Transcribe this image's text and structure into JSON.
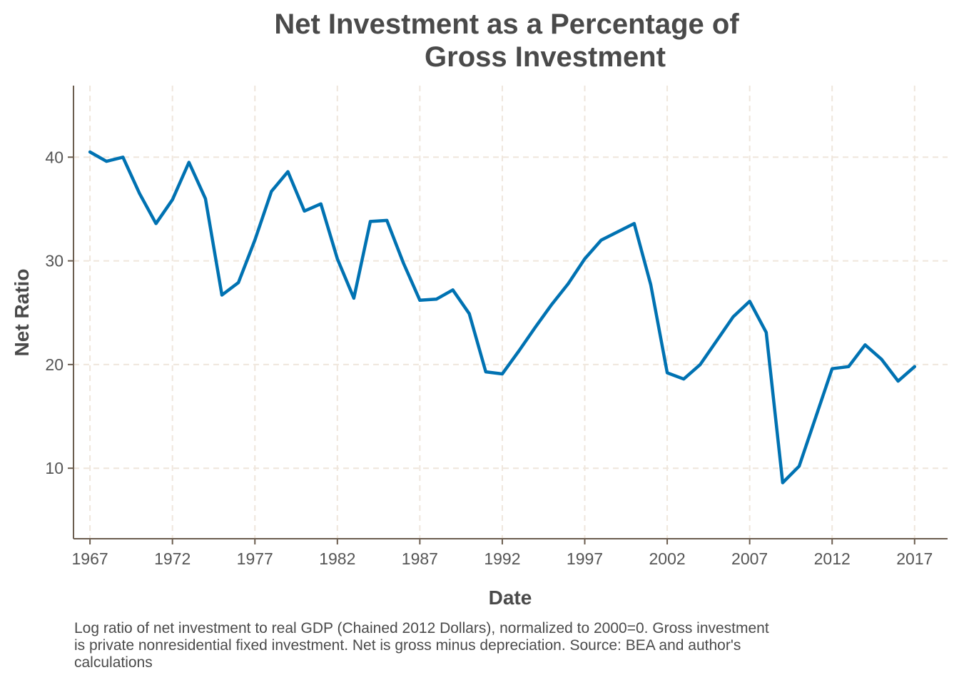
{
  "chart_data": {
    "type": "line",
    "title_lines": [
      "Net Investment as a Percentage of",
      "Gross Investment"
    ],
    "xlabel": "Date",
    "ylabel": "Net Ratio",
    "caption_lines": [
      "Log ratio of net investment to real GDP (Chained 2012 Dollars), normalized to 2000=0. Gross investment",
      "is private nonresidential fixed investment. Net is gross minus depreciation. Source: BEA and author's",
      "calculations"
    ],
    "xlim": [
      1966,
      2019
    ],
    "ylim": [
      3.2,
      46.9
    ],
    "x_ticks": [
      1967,
      1972,
      1977,
      1982,
      1987,
      1992,
      1997,
      2002,
      2007,
      2012,
      2017
    ],
    "y_ticks": [
      10,
      20,
      30,
      40
    ],
    "x_tick_labels": [
      "1967",
      "1972",
      "1977",
      "1982",
      "1987",
      "1992",
      "1997",
      "2002",
      "2007",
      "2012",
      "2017"
    ],
    "y_tick_labels": [
      "10",
      "20",
      "30",
      "40"
    ],
    "grid": true,
    "line_color": "#0072b2",
    "grid_color": "#efe6dc",
    "axis_color": "#6b5d4f",
    "series": [
      {
        "x": [
          1967,
          1968,
          1969,
          1970,
          1971,
          1972,
          1973,
          1974,
          1975,
          1976,
          1977,
          1978,
          1979,
          1980,
          1981,
          1982,
          1983,
          1984,
          1985,
          1986,
          1987,
          1988,
          1989,
          1990,
          1991,
          1992,
          1993,
          1994,
          1995,
          1996,
          1997,
          1998,
          1999,
          2000,
          2001,
          2002,
          2003,
          2004,
          2005,
          2006,
          2007,
          2008,
          2009,
          2010,
          2011,
          2012,
          2013,
          2014,
          2015,
          2016,
          2017
        ],
        "values": [
          40.5,
          39.6,
          40.0,
          36.5,
          33.6,
          35.9,
          39.5,
          36.0,
          26.7,
          27.9,
          32.0,
          36.7,
          38.6,
          34.8,
          35.5,
          30.2,
          26.4,
          33.8,
          33.9,
          29.8,
          26.2,
          26.3,
          27.2,
          24.9,
          19.3,
          19.1,
          21.3,
          23.6,
          25.8,
          27.8,
          30.2,
          32.0,
          32.8,
          33.6,
          27.7,
          19.2,
          18.6,
          20.0,
          22.3,
          24.6,
          26.1,
          23.1,
          8.6,
          10.2,
          14.9,
          19.6,
          19.8,
          21.9,
          20.5,
          18.4,
          19.8
        ]
      }
    ]
  }
}
